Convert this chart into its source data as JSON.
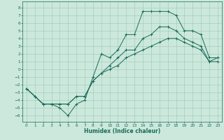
{
  "title": "",
  "xlabel": "Humidex (Indice chaleur)",
  "background_color": "#cce8dc",
  "grid_color": "#99c8b4",
  "line_color": "#1a6b5a",
  "x_ticks": [
    0,
    1,
    2,
    3,
    4,
    5,
    6,
    7,
    8,
    9,
    10,
    11,
    12,
    13,
    14,
    15,
    16,
    17,
    18,
    19,
    20,
    21,
    22,
    23
  ],
  "y_ticks": [
    8,
    7,
    6,
    5,
    4,
    3,
    2,
    1,
    0,
    -1,
    -2,
    -3,
    -4,
    -5,
    -6
  ],
  "ylim": [
    -6.8,
    8.8
  ],
  "xlim": [
    -0.5,
    23.5
  ],
  "line1_x": [
    0,
    1,
    2,
    3,
    4,
    5,
    6,
    7,
    8,
    9,
    10,
    11,
    12,
    13,
    14,
    15,
    16,
    17,
    18,
    19,
    20,
    21,
    22,
    23
  ],
  "line1_y": [
    -2.5,
    -3.5,
    -4.5,
    -4.5,
    -5.0,
    -6.0,
    -4.5,
    -4.0,
    -1.0,
    2.0,
    1.5,
    2.5,
    4.5,
    4.5,
    7.5,
    7.5,
    7.5,
    7.5,
    7.0,
    5.0,
    5.0,
    4.5,
    1.5,
    1.5
  ],
  "line2_x": [
    0,
    1,
    2,
    3,
    4,
    5,
    6,
    7,
    8,
    9,
    10,
    11,
    12,
    13,
    14,
    15,
    16,
    17,
    18,
    19,
    20,
    21,
    22,
    23
  ],
  "line2_y": [
    -2.5,
    -3.5,
    -4.5,
    -4.5,
    -4.5,
    -4.5,
    -3.5,
    -3.5,
    -1.5,
    -0.5,
    0.5,
    1.5,
    2.5,
    2.5,
    4.0,
    4.5,
    5.5,
    5.5,
    5.0,
    4.0,
    3.5,
    3.0,
    1.0,
    1.0
  ],
  "line3_x": [
    0,
    1,
    2,
    3,
    4,
    5,
    6,
    7,
    8,
    9,
    10,
    11,
    12,
    13,
    14,
    15,
    16,
    17,
    18,
    19,
    20,
    21,
    22,
    23
  ],
  "line3_y": [
    -2.5,
    -3.5,
    -4.5,
    -4.5,
    -4.5,
    -4.5,
    -3.5,
    -3.5,
    -1.5,
    -0.5,
    0.0,
    0.5,
    1.5,
    2.0,
    2.5,
    3.0,
    3.5,
    4.0,
    4.0,
    3.5,
    3.0,
    2.5,
    1.0,
    1.5
  ],
  "xlabel_fontsize": 5.5,
  "tick_fontsize": 4.2,
  "linewidth": 0.7,
  "markersize": 3.0
}
